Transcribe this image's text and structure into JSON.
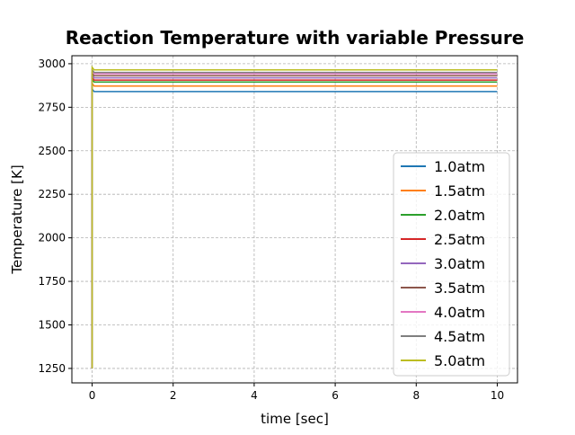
{
  "chart_data": {
    "type": "line",
    "title": "Reaction Temperature with variable Pressure",
    "xlabel": "time [sec]",
    "ylabel": "Temperature [K]",
    "xlim": [
      -0.5,
      10.5
    ],
    "ylim": [
      1167,
      3046
    ],
    "xticks": [
      0,
      2,
      4,
      6,
      8,
      10
    ],
    "yticks": [
      1250,
      1500,
      1750,
      2000,
      2250,
      2500,
      2750,
      3000
    ],
    "grid": true,
    "legend_position": "lower-right",
    "initial_temperature": 1250,
    "series": [
      {
        "name": "1.0atm",
        "color": "#1f77b4",
        "steady": 2840
      },
      {
        "name": "1.5atm",
        "color": "#ff7f0e",
        "steady": 2872
      },
      {
        "name": "2.0atm",
        "color": "#2ca02c",
        "steady": 2895
      },
      {
        "name": "2.5atm",
        "color": "#d62728",
        "steady": 2906
      },
      {
        "name": "3.0atm",
        "color": "#9467bd",
        "steady": 2919
      },
      {
        "name": "3.5atm",
        "color": "#8c564b",
        "steady": 2931
      },
      {
        "name": "4.0atm",
        "color": "#e377c2",
        "steady": 2943
      },
      {
        "name": "4.5atm",
        "color": "#7f7f7f",
        "steady": 2950
      },
      {
        "name": "5.0atm",
        "color": "#bcbd22",
        "steady": 2965
      }
    ]
  }
}
